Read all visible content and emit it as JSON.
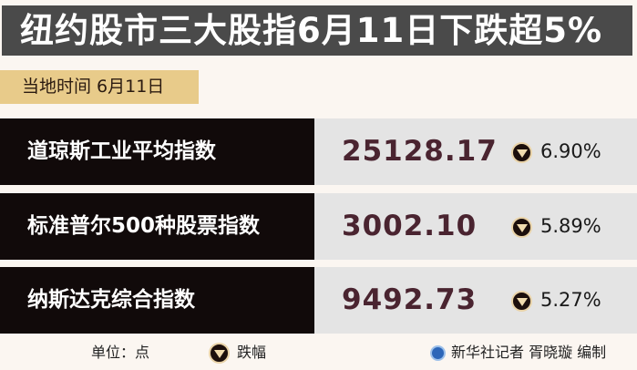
{
  "title": "纽约股市三大股指6月11日下跌超5%",
  "date_label": "当地时间 6月11日",
  "rows": [
    {
      "name": "道琼斯工业平均指数",
      "value": "25128.17",
      "change": "6.90%",
      "direction": "down"
    },
    {
      "name": "标准普尔500种股票指数",
      "value": "3002.10",
      "change": "5.89%",
      "direction": "down"
    },
    {
      "name": "纳斯达克综合指数",
      "value": "9492.73",
      "change": "5.27%",
      "direction": "down"
    }
  ],
  "footer": {
    "unit": "单位：点",
    "legend_label": "跌幅",
    "legend_icon": "down-triangle-icon",
    "credit": "新华社记者 胥晓璇 编制",
    "credit_icon": "xinhua-logo-icon"
  },
  "colors": {
    "title_bg": "#4a4a4a",
    "date_bg": "#e8cb8a",
    "name_bg": "#110a0a",
    "value_bg": "#e4e4e4",
    "value_text": "#4a2430"
  }
}
